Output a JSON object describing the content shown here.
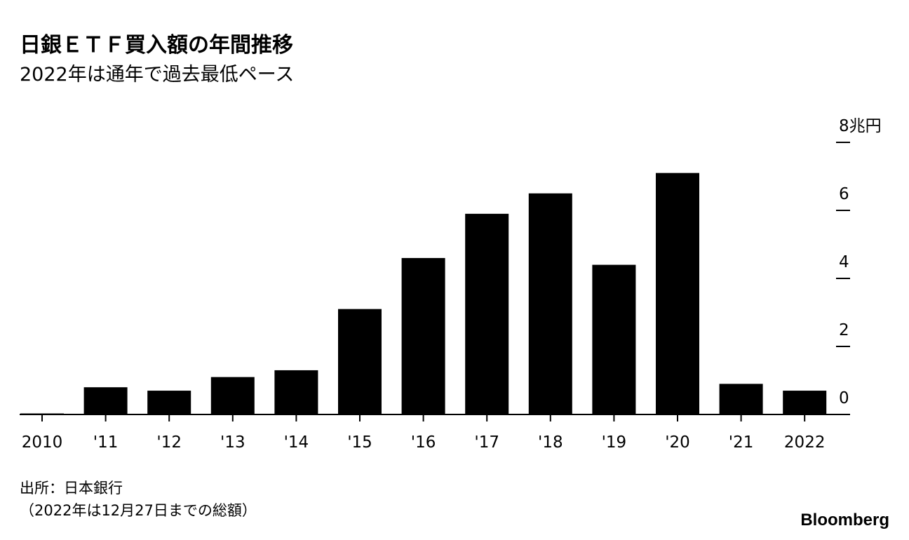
{
  "chart_data": {
    "type": "bar",
    "title": "日銀ＥＴＦ買入額の年間推移",
    "subtitle": "2022年は通年で過去最低ペース",
    "categories": [
      "2010",
      "'11",
      "'12",
      "'13",
      "'14",
      "'15",
      "'16",
      "'17",
      "'18",
      "'19",
      "'20",
      "'21",
      "2022"
    ],
    "values": [
      0.03,
      0.8,
      0.7,
      1.1,
      1.3,
      3.1,
      4.6,
      5.9,
      6.5,
      4.4,
      7.1,
      0.9,
      0.7
    ],
    "color": "#000000",
    "ylim": [
      0,
      8
    ],
    "yticks": [
      0,
      2,
      4,
      6,
      {
        "value": 8,
        "label": "8兆円"
      }
    ],
    "notes": [
      "出所：日本銀行",
      "（2022年は12月27日までの総額）"
    ],
    "brand": "Bloomberg"
  }
}
